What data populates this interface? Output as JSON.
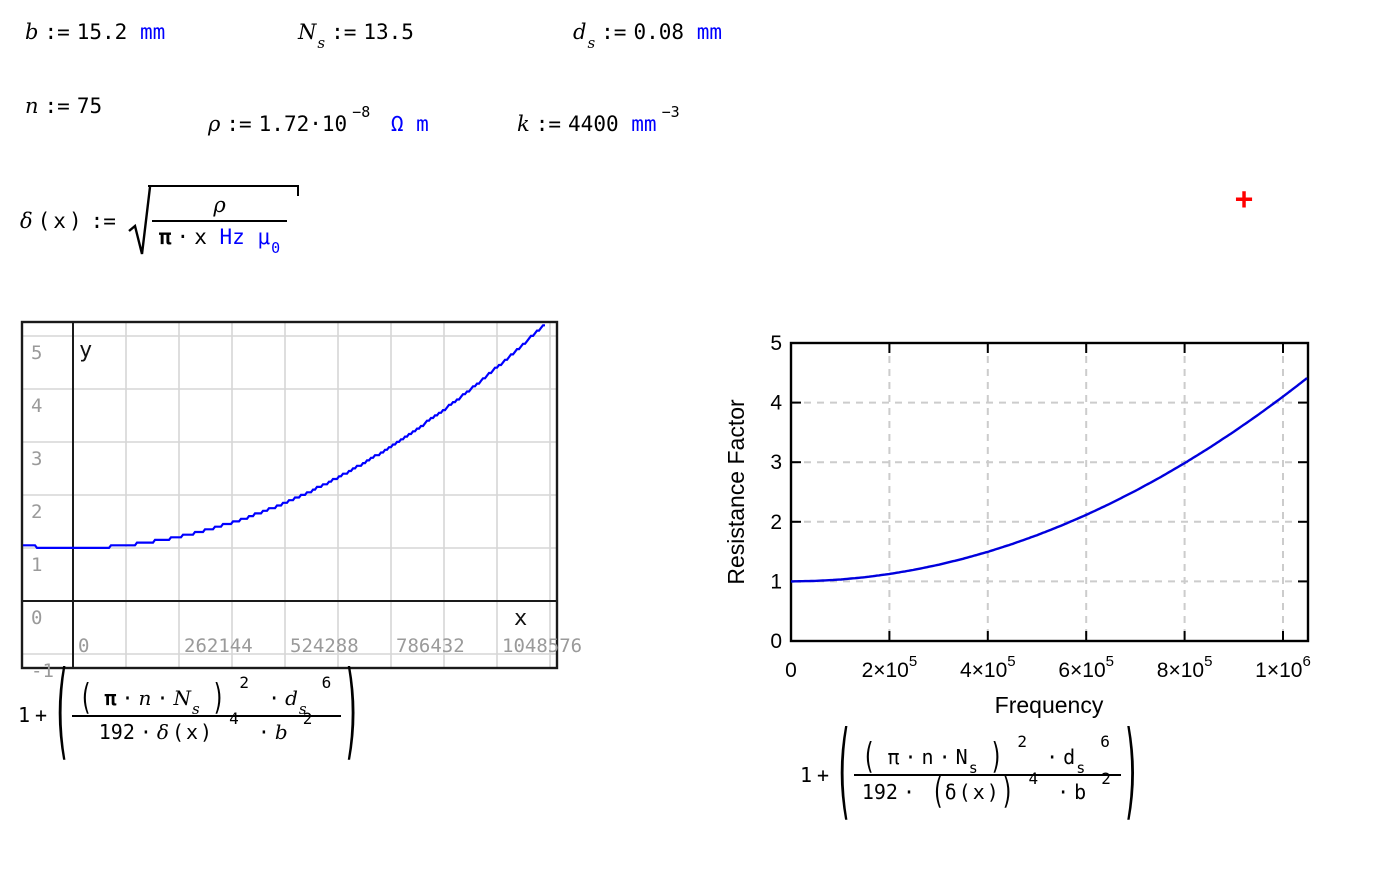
{
  "colors": {
    "unit_blue": "#0000ff",
    "cursor_red": "#ff0000",
    "left_curve": "#0000ff",
    "right_curve": "#0000dd",
    "left_grid": "#d6d6d6",
    "left_label_gray": "#9a9a9a",
    "axis_black": "#1a1a1a",
    "right_grid": "#cccccc"
  },
  "definitions": [
    {
      "var": "b",
      "sub": "",
      "op": ":=",
      "value": "15.2",
      "unit": "mm",
      "exp": ""
    },
    {
      "var": "N",
      "sub": "s",
      "op": ":=",
      "value": "13.5",
      "unit": "",
      "exp": ""
    },
    {
      "var": "d",
      "sub": "s",
      "op": ":=",
      "value": "0.08",
      "unit": "mm",
      "exp": ""
    },
    {
      "var": "n",
      "sub": "",
      "op": ":=",
      "value": "75",
      "unit": "",
      "exp": ""
    },
    {
      "var": "ρ",
      "sub": "",
      "op": ":=",
      "value": "1.72·10",
      "exp": "−8",
      "unit": "Ω m"
    },
    {
      "var": "k",
      "sub": "",
      "op": ":=",
      "value": "4400",
      "unit": "mm",
      "exp": "−3"
    }
  ],
  "delta_def": {
    "lhs": "δ",
    "arg": "(x)",
    "op": ":=",
    "numerator": "ρ",
    "den_pi": "π",
    "den_dot": "·",
    "den_x": "x",
    "den_unit": "Hz μ",
    "den_unit_sub": "0"
  },
  "cursor": {
    "glyph": "+"
  },
  "formula_left": {
    "one": "1",
    "plus": "+",
    "open": "(",
    "close": ")",
    "inner_open": "(",
    "pi": "π",
    "dot1": "·",
    "n": "n",
    "dot2": "·",
    "N": "N",
    "N_sub": "s",
    "inner_close": ")",
    "pow2": "2",
    "dot3": "·",
    "d": "d",
    "d_sub": "s",
    "pow6": "6",
    "coeff": "192",
    "dot4": "·",
    "delta": "δ",
    "arg": "(x)",
    "pow4": "4",
    "dot5": "·",
    "b": "b",
    "powb": "2"
  },
  "formula_right": {
    "one": "1",
    "plus": "+",
    "open": "(",
    "close": ")",
    "inner_open": "(",
    "pi": "π",
    "dot1": "·",
    "n": "n",
    "dot2": "·",
    "N": "N",
    "N_sub": "s",
    "inner_close": ")",
    "pow2": "2",
    "dot3": "·",
    "d": "d",
    "d_sub": "s",
    "pow6": "6",
    "coeff": "192",
    "dot4": "·",
    "delta_open": "(",
    "delta": "δ",
    "arg": "(x)",
    "delta_close": ")",
    "pow4": "4",
    "dot5": "·",
    "b": "b",
    "powb": "2"
  },
  "chart_data": [
    {
      "id": "left_plot",
      "type": "line",
      "style": "smath-grid",
      "axis_labels": {
        "x": "x",
        "y": "y"
      },
      "x_ticks": [
        {
          "value": 0,
          "label": "0"
        },
        {
          "value": 262144,
          "label": "262144"
        },
        {
          "value": 524288,
          "label": "524288"
        },
        {
          "value": 786432,
          "label": "786432"
        },
        {
          "value": 1048576,
          "label": "1048576"
        }
      ],
      "y_ticks": [
        {
          "value": 5,
          "label": "5"
        },
        {
          "value": 4,
          "label": "4"
        },
        {
          "value": 3,
          "label": "3"
        },
        {
          "value": 2,
          "label": "2"
        },
        {
          "value": 1,
          "label": "1"
        },
        {
          "value": 0,
          "label": "0"
        },
        {
          "value": -1,
          "label": "-1"
        }
      ],
      "xlim": [
        -131072,
        1216512
      ],
      "ylim": [
        -1.31,
        5.27
      ],
      "grid": true,
      "series": [
        {
          "name": "1+((π·n·Ns)^2·ds^6)/(192·δ(x)^4·b^2)",
          "color": "#0000ff",
          "x": [
            -131072,
            -100000,
            -50000,
            0,
            50000,
            100000,
            150000,
            200000,
            250000,
            300000,
            350000,
            400000,
            450000,
            500000,
            550000,
            600000,
            650000,
            700000,
            750000,
            800000,
            850000,
            900000,
            950000,
            1000000,
            1050000,
            1100000,
            1150000,
            1180000
          ],
          "y": [
            1.053,
            1.031,
            1.008,
            1.0,
            1.008,
            1.031,
            1.07,
            1.124,
            1.194,
            1.279,
            1.38,
            1.496,
            1.628,
            1.775,
            1.938,
            2.116,
            2.31,
            2.519,
            2.744,
            2.984,
            3.24,
            3.511,
            3.798,
            4.1,
            4.418,
            4.751,
            5.1,
            5.317
          ]
        }
      ]
    },
    {
      "id": "right_plot",
      "type": "line",
      "style": "mathcad-dashed-grid",
      "xlabel": "Frequency",
      "ylabel": "Resistance Factor",
      "x_ticks": [
        {
          "value": 0,
          "base": "0",
          "exp": ""
        },
        {
          "value": 200000,
          "base": "2×10",
          "exp": "5"
        },
        {
          "value": 400000,
          "base": "4×10",
          "exp": "5"
        },
        {
          "value": 600000,
          "base": "6×10",
          "exp": "5"
        },
        {
          "value": 800000,
          "base": "8×10",
          "exp": "5"
        },
        {
          "value": 1000000,
          "base": "1×10",
          "exp": "6"
        }
      ],
      "y_ticks": [
        {
          "value": 0,
          "label": "0"
        },
        {
          "value": 1,
          "label": "1"
        },
        {
          "value": 2,
          "label": "2"
        },
        {
          "value": 3,
          "label": "3"
        },
        {
          "value": 4,
          "label": "4"
        },
        {
          "value": 5,
          "label": "5"
        }
      ],
      "xlim": [
        0,
        1050800
      ],
      "ylim": [
        0,
        5
      ],
      "grid": "dashed",
      "series": [
        {
          "name": "1+((π·n·Ns)^2·ds^6)/(192·(δ(x))^4·b^2)",
          "color": "#0000dd",
          "x": [
            0,
            50000,
            100000,
            150000,
            200000,
            250000,
            300000,
            350000,
            400000,
            450000,
            500000,
            550000,
            600000,
            650000,
            700000,
            750000,
            800000,
            850000,
            900000,
            950000,
            1000000,
            1050000
          ],
          "y": [
            1.0,
            1.008,
            1.031,
            1.07,
            1.124,
            1.194,
            1.279,
            1.38,
            1.496,
            1.628,
            1.775,
            1.938,
            2.116,
            2.31,
            2.519,
            2.744,
            2.984,
            3.24,
            3.511,
            3.798,
            4.1,
            4.418
          ]
        }
      ]
    }
  ]
}
